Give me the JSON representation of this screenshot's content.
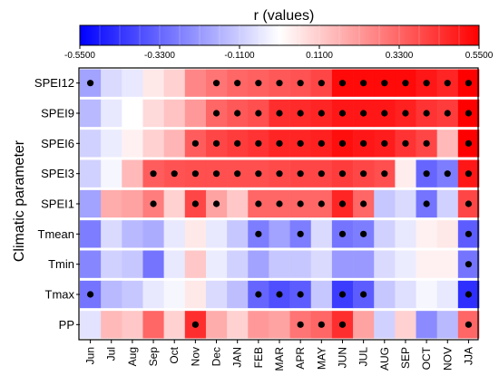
{
  "chart_data": {
    "type": "heatmap",
    "title": "r (values)",
    "ylabel": "Climatic parameter",
    "xlabel": "",
    "colorbar": {
      "label": "r (values)",
      "min": -0.55,
      "max": 0.55,
      "ticks": [
        "-0.5500",
        "-0.3300",
        "-0.1100",
        "0.1100",
        "0.3300",
        "0.5500"
      ],
      "low_color": "#0000ff",
      "mid_color": "#ffffff",
      "high_color": "#ff0000"
    },
    "columns": [
      "Jun",
      "Jul",
      "Aug",
      "Sep",
      "Oct",
      "Nov",
      "Dec",
      "JAN",
      "FEB",
      "MAR",
      "APR",
      "MAY",
      "JUN",
      "JUL",
      "AUG",
      "SEP",
      "OCT",
      "NOV",
      "JJA"
    ],
    "rows": [
      "SPEI12",
      "SPEI9",
      "SPEI6",
      "SPEI3",
      "SPEI1",
      "Tmean",
      "Tmin",
      "Tmax",
      "PP"
    ],
    "values": [
      [
        -0.2,
        -0.08,
        -0.05,
        0.05,
        0.1,
        0.26,
        0.3,
        0.33,
        0.34,
        0.36,
        0.37,
        0.4,
        0.53,
        0.53,
        0.53,
        0.53,
        0.5,
        0.47,
        0.55
      ],
      [
        -0.15,
        -0.05,
        0.0,
        0.08,
        0.13,
        0.22,
        0.33,
        0.36,
        0.38,
        0.45,
        0.46,
        0.47,
        0.5,
        0.5,
        0.5,
        0.48,
        0.44,
        0.42,
        0.55
      ],
      [
        -0.1,
        -0.04,
        0.03,
        0.1,
        0.16,
        0.35,
        0.4,
        0.42,
        0.44,
        0.47,
        0.47,
        0.48,
        0.52,
        0.5,
        0.49,
        0.44,
        0.4,
        0.15,
        0.55
      ],
      [
        -0.1,
        -0.02,
        0.15,
        0.35,
        0.37,
        0.38,
        0.38,
        0.38,
        0.38,
        0.39,
        0.4,
        0.4,
        0.42,
        0.4,
        0.38,
        0.04,
        -0.33,
        -0.28,
        0.5
      ],
      [
        -0.2,
        0.18,
        0.2,
        0.28,
        0.1,
        0.4,
        0.2,
        0.12,
        0.33,
        0.33,
        0.33,
        0.33,
        0.47,
        0.33,
        -0.12,
        -0.08,
        -0.3,
        -0.1,
        0.4
      ],
      [
        -0.28,
        -0.08,
        -0.15,
        -0.18,
        -0.05,
        0.05,
        -0.05,
        -0.12,
        -0.28,
        -0.2,
        -0.28,
        -0.08,
        -0.3,
        -0.28,
        -0.1,
        -0.05,
        0.03,
        0.05,
        -0.35
      ],
      [
        -0.26,
        -0.1,
        -0.12,
        -0.3,
        -0.05,
        0.12,
        -0.04,
        -0.1,
        -0.2,
        -0.12,
        -0.12,
        -0.08,
        -0.22,
        -0.22,
        -0.08,
        -0.04,
        0.03,
        0.03,
        -0.3
      ],
      [
        -0.3,
        -0.15,
        -0.12,
        -0.05,
        -0.02,
        0.05,
        -0.08,
        -0.14,
        -0.33,
        -0.38,
        -0.35,
        -0.12,
        -0.42,
        -0.35,
        -0.12,
        -0.07,
        -0.02,
        -0.05,
        -0.45
      ],
      [
        -0.06,
        0.15,
        0.12,
        0.33,
        0.1,
        0.45,
        0.18,
        0.1,
        0.22,
        0.2,
        0.3,
        0.33,
        0.45,
        0.2,
        -0.1,
        0.1,
        -0.25,
        -0.15,
        0.33
      ]
    ],
    "significant": [
      [
        true,
        false,
        false,
        false,
        false,
        false,
        true,
        true,
        true,
        true,
        true,
        true,
        true,
        true,
        true,
        true,
        true,
        true,
        true
      ],
      [
        false,
        false,
        false,
        false,
        false,
        false,
        true,
        true,
        true,
        true,
        true,
        true,
        true,
        true,
        true,
        true,
        true,
        true,
        true
      ],
      [
        false,
        false,
        false,
        false,
        false,
        true,
        true,
        true,
        true,
        true,
        true,
        true,
        true,
        true,
        true,
        true,
        true,
        false,
        true
      ],
      [
        false,
        false,
        false,
        true,
        true,
        true,
        true,
        true,
        true,
        true,
        true,
        true,
        true,
        true,
        true,
        false,
        true,
        true,
        true
      ],
      [
        false,
        false,
        false,
        true,
        false,
        true,
        true,
        false,
        true,
        true,
        true,
        true,
        true,
        true,
        false,
        false,
        true,
        false,
        true
      ],
      [
        false,
        false,
        false,
        false,
        false,
        false,
        false,
        false,
        true,
        false,
        true,
        false,
        true,
        true,
        false,
        false,
        false,
        false,
        true
      ],
      [
        false,
        false,
        false,
        false,
        false,
        false,
        false,
        false,
        false,
        false,
        false,
        false,
        false,
        false,
        false,
        false,
        false,
        false,
        true
      ],
      [
        true,
        false,
        false,
        false,
        false,
        false,
        false,
        false,
        true,
        true,
        true,
        false,
        true,
        true,
        false,
        false,
        false,
        false,
        true
      ],
      [
        false,
        false,
        false,
        false,
        false,
        true,
        false,
        false,
        false,
        false,
        true,
        true,
        true,
        false,
        false,
        false,
        false,
        false,
        true
      ]
    ],
    "legend": "top"
  }
}
